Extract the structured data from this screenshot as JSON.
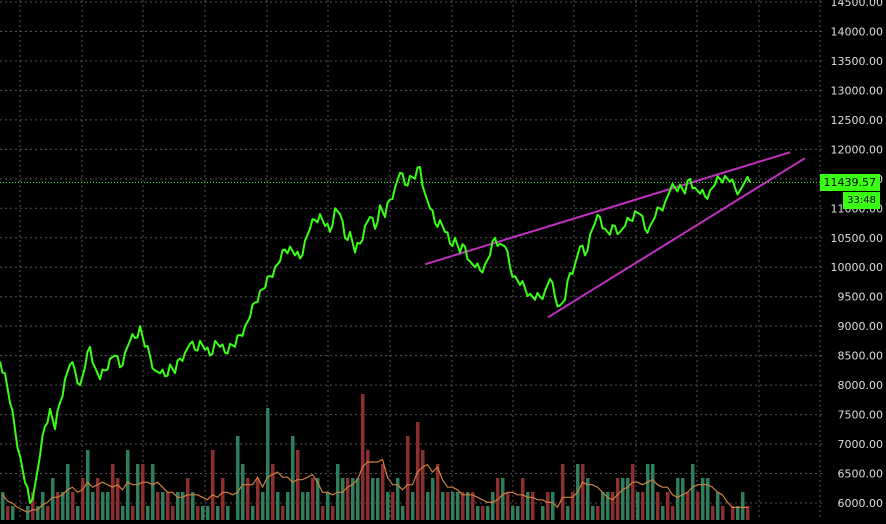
{
  "chart_data": {
    "type": "line",
    "title": "",
    "xlabel": "",
    "ylabel": "",
    "ylim": [
      5900,
      14500
    ],
    "y_ticks": [
      "14500.00",
      "14000.00",
      "13500.00",
      "13000.00",
      "12500.00",
      "12000.00",
      "11500.00",
      "11000.00",
      "10500.00",
      "10000.00",
      "9500.00",
      "9000.00",
      "8500.00",
      "8000.00",
      "7500.00",
      "7000.00",
      "6500.00",
      "6000.00"
    ],
    "grid": true,
    "price_series": {
      "name": "",
      "color": "#39ff14",
      "x": [
        0,
        5,
        10,
        15,
        20,
        25,
        30,
        35,
        40,
        45,
        50,
        55,
        60,
        65,
        70,
        75,
        80,
        85,
        90,
        95,
        100,
        105,
        110,
        115,
        120,
        125,
        130,
        135,
        140,
        145,
        150,
        155,
        160,
        165,
        170,
        175,
        180,
        185,
        190,
        195,
        200,
        205,
        210,
        215,
        220,
        225,
        230,
        235,
        240,
        245,
        250,
        255,
        260,
        265,
        270,
        275,
        280,
        285,
        290,
        295,
        300,
        305,
        310,
        315,
        320,
        325,
        330,
        335,
        340,
        345,
        350,
        355,
        360,
        365,
        370,
        375,
        380,
        385,
        390,
        395,
        400,
        405,
        410,
        415,
        420,
        425,
        430,
        435,
        440,
        445,
        450,
        455,
        460,
        465,
        470,
        475,
        480,
        485,
        490,
        495,
        500,
        505,
        510,
        515,
        520,
        525,
        530,
        535,
        540,
        545,
        550,
        555,
        560,
        565,
        570,
        575,
        580,
        585,
        590,
        595,
        600,
        605,
        610,
        615,
        620,
        625,
        630,
        635,
        640,
        645,
        650,
        655,
        660,
        665,
        670,
        675,
        680,
        685,
        690,
        695,
        700,
        705,
        710,
        715,
        720,
        725,
        730,
        735,
        740,
        745,
        750
      ],
      "y": [
        8400,
        8200,
        7700,
        7250,
        6800,
        6350,
        6000,
        6300,
        6800,
        7300,
        7600,
        7250,
        7700,
        8100,
        8350,
        8250,
        8000,
        8300,
        8650,
        8300,
        8100,
        8250,
        8450,
        8500,
        8300,
        8550,
        8750,
        8800,
        9000,
        8650,
        8500,
        8250,
        8200,
        8150,
        8350,
        8200,
        8450,
        8550,
        8700,
        8600,
        8750,
        8600,
        8500,
        8750,
        8650,
        8550,
        8700,
        8650,
        8850,
        9000,
        9150,
        9400,
        9600,
        9650,
        9850,
        10000,
        10100,
        10300,
        10350,
        10200,
        10150,
        10450,
        10650,
        10800,
        10900,
        10700,
        10600,
        11000,
        10900,
        10500,
        10600,
        10250,
        10400,
        10700,
        10850,
        10650,
        11050,
        10850,
        11150,
        11350,
        11600,
        11400,
        11550,
        11500,
        11700,
        11250,
        11000,
        10750,
        10800,
        10600,
        10400,
        10500,
        10250,
        10350,
        10100,
        10000,
        9950,
        10050,
        10200,
        10500,
        10400,
        10350,
        10000,
        9850,
        9700,
        9650,
        9550,
        9450,
        9500,
        9600,
        9800,
        9500,
        9350,
        9450,
        9900,
        10050,
        10350,
        10200,
        10550,
        10750,
        10850,
        10650,
        10550,
        10700,
        10600,
        10700,
        10800,
        10950,
        10900,
        10650,
        10700,
        10850,
        11000,
        11100,
        11300,
        11350,
        11400,
        11250,
        11500,
        11350,
        11250,
        11200,
        11300,
        11400,
        11500,
        11550,
        11450,
        11350,
        11300,
        11450,
        11439.57
      ],
      "last_value": "11439.57",
      "timer": "33:48"
    },
    "trendlines": [
      {
        "color": "#c030c0",
        "x1": 425,
        "y1": 10050,
        "x2": 790,
        "y2": 11950
      },
      {
        "color": "#c030c0",
        "x1": 548,
        "y1": 9150,
        "x2": 805,
        "y2": 11850
      }
    ],
    "volume": {
      "up_color": "#2e7d5b",
      "down_color": "#8b2e2e",
      "ma_color": "#d08040",
      "values": [
        2,
        1,
        1,
        0,
        0,
        1,
        2,
        1,
        2,
        1,
        3,
        2,
        2,
        4,
        2,
        1,
        3,
        5,
        2,
        3,
        2,
        2,
        4,
        3,
        1,
        5,
        1,
        4,
        4,
        1,
        4,
        2,
        2,
        2,
        1,
        2,
        2,
        3,
        2,
        1,
        1,
        1,
        5,
        1,
        3,
        1,
        0,
        6,
        4,
        3,
        1,
        3,
        2,
        8,
        4,
        2,
        1,
        2,
        6,
        5,
        2,
        2,
        3,
        3,
        1,
        2,
        1,
        4,
        3,
        3,
        3,
        3,
        9,
        5,
        3,
        3,
        4,
        2,
        2,
        3,
        1,
        6,
        2,
        7,
        5,
        2,
        3,
        4,
        2,
        2,
        2,
        2,
        2,
        2,
        2,
        1,
        1,
        1,
        2,
        3,
        3,
        2,
        1,
        1,
        3,
        2,
        2,
        0,
        1,
        2,
        2,
        0,
        4,
        1,
        2,
        4,
        4,
        3,
        1,
        1,
        2,
        2,
        2,
        3,
        3,
        3,
        4,
        2,
        2,
        4,
        4,
        2,
        1,
        2,
        1,
        3,
        3,
        2,
        4,
        2,
        3,
        3,
        1,
        2,
        1,
        0,
        1,
        1,
        2,
        1
      ],
      "up": [
        1,
        0,
        1,
        0,
        1,
        1,
        0,
        1,
        1,
        0,
        1,
        0,
        1,
        1,
        0,
        1,
        0,
        1,
        1,
        0,
        1,
        1,
        0,
        0,
        1,
        1,
        0,
        1,
        0,
        1,
        1,
        0,
        1,
        0,
        0,
        1,
        1,
        0,
        1,
        0,
        1,
        1,
        0,
        1,
        0,
        1,
        0,
        1,
        1,
        0,
        1,
        0,
        1,
        1,
        0,
        1,
        0,
        1,
        1,
        0,
        1,
        1,
        0,
        1,
        0,
        1,
        0,
        1,
        1,
        0,
        1,
        1,
        0,
        0,
        1,
        1,
        0,
        1,
        0,
        1,
        1,
        0,
        1,
        0,
        0,
        1,
        1,
        0,
        1,
        0,
        1,
        1,
        0,
        1,
        0,
        1,
        0,
        1,
        1,
        0,
        1,
        0,
        1,
        1,
        0,
        1,
        0,
        1,
        1,
        0,
        1,
        1,
        0,
        1,
        0,
        1,
        0,
        1,
        1,
        0,
        1,
        1,
        0,
        0,
        1,
        1,
        0,
        1,
        0,
        1,
        1,
        0,
        1,
        0,
        0,
        1,
        1,
        0,
        1,
        0,
        1,
        1,
        0,
        1,
        0,
        1,
        0,
        1,
        1,
        0
      ]
    }
  }
}
